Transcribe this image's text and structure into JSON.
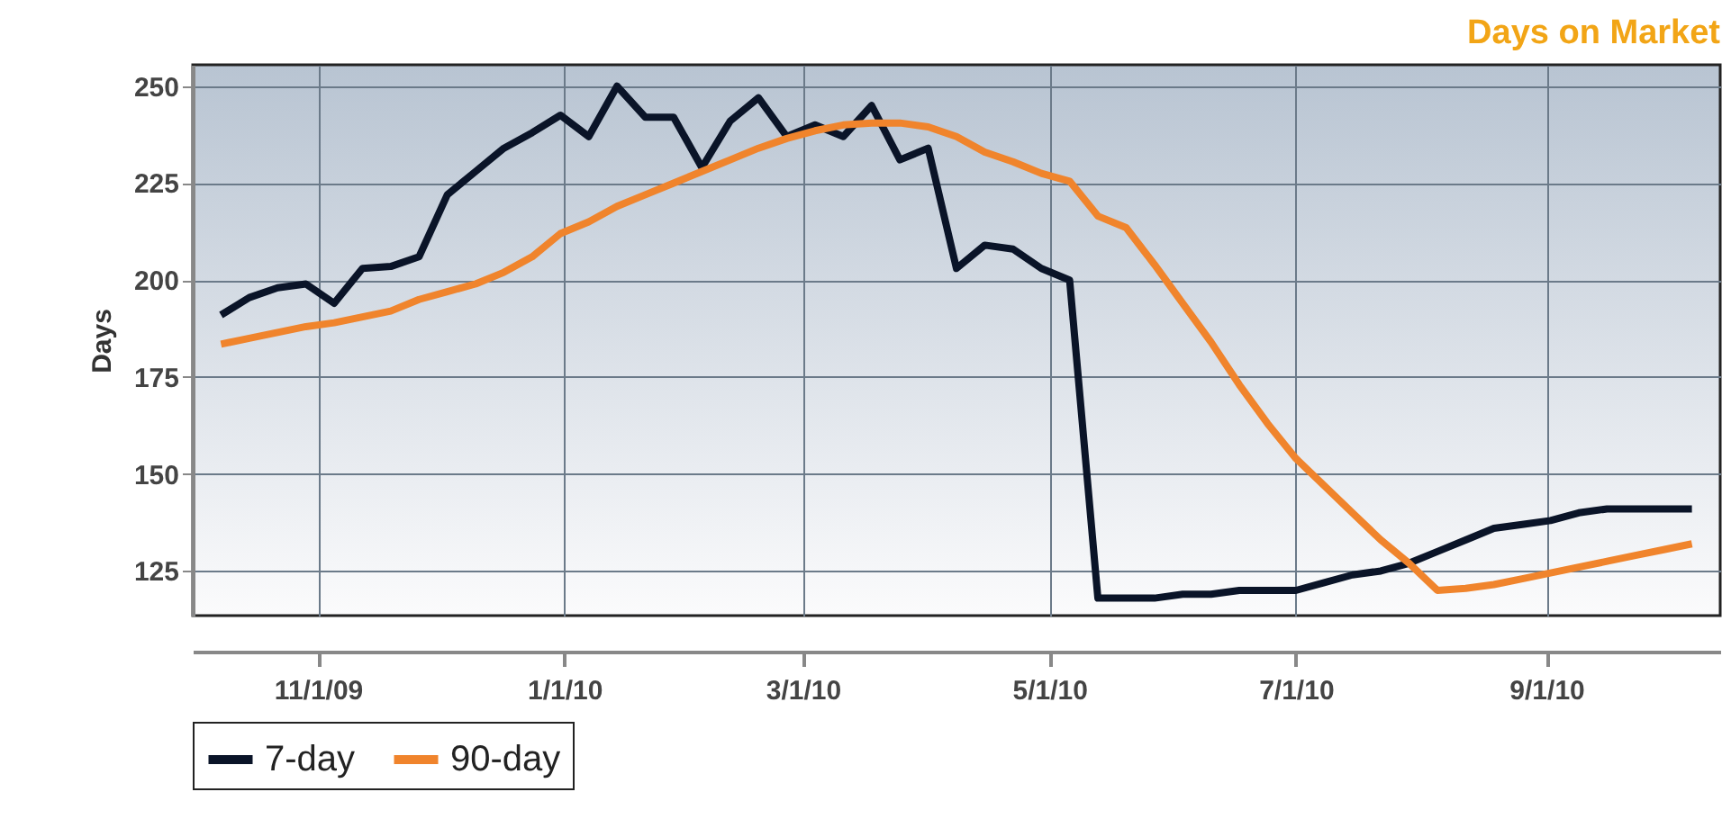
{
  "chart_data": {
    "type": "line",
    "title": "Days on Market",
    "ylabel": "Days",
    "x": [
      "2009-10-08",
      "2009-10-15",
      "2009-10-22",
      "2009-10-29",
      "2009-11-05",
      "2009-11-12",
      "2009-11-19",
      "2009-11-26",
      "2009-12-03",
      "2009-12-10",
      "2009-12-17",
      "2009-12-24",
      "2009-12-31",
      "2010-01-07",
      "2010-01-14",
      "2010-01-21",
      "2010-01-28",
      "2010-02-04",
      "2010-02-11",
      "2010-02-18",
      "2010-02-25",
      "2010-03-04",
      "2010-03-11",
      "2010-03-18",
      "2010-03-25",
      "2010-04-01",
      "2010-04-08",
      "2010-04-15",
      "2010-04-22",
      "2010-04-29",
      "2010-05-06",
      "2010-05-13",
      "2010-05-20",
      "2010-05-27",
      "2010-06-03",
      "2010-06-10",
      "2010-06-17",
      "2010-06-24",
      "2010-07-01",
      "2010-07-08",
      "2010-07-15",
      "2010-07-22",
      "2010-07-29",
      "2010-08-05",
      "2010-08-12",
      "2010-08-19",
      "2010-08-26",
      "2010-09-02",
      "2010-09-09",
      "2010-09-16",
      "2010-09-23",
      "2010-09-30",
      "2010-10-07"
    ],
    "series": [
      {
        "name": "7-day",
        "color": "#0a1428",
        "values": [
          191,
          195.5,
          198,
          199,
          194,
          203,
          203.5,
          206,
          222,
          228,
          234,
          238,
          242.5,
          237,
          250,
          242,
          242,
          229,
          241,
          247,
          237,
          240,
          237,
          245,
          231,
          234,
          203,
          209,
          208,
          203,
          200,
          118,
          118,
          118,
          119,
          119,
          120,
          120,
          120,
          122,
          124,
          125,
          127,
          130,
          133,
          136,
          137,
          138,
          140,
          141,
          141,
          141,
          141
        ]
      },
      {
        "name": "90-day",
        "color": "#f0842c",
        "values": [
          183.5,
          185,
          186.5,
          188,
          189,
          190.5,
          192,
          195,
          197,
          199,
          202,
          206,
          212,
          215,
          219,
          222,
          225,
          228,
          231,
          234,
          236.5,
          238.5,
          240,
          240.5,
          240.5,
          239.5,
          237,
          233,
          230.5,
          227.5,
          225.5,
          216.5,
          213.5,
          204,
          194,
          184,
          173,
          163,
          154,
          147,
          140,
          133,
          127,
          120,
          120.5,
          121.5,
          123,
          124.5,
          126,
          127.5,
          129,
          130.5,
          132
        ]
      }
    ],
    "xlim": [
      "2009-10-01",
      "2010-10-14"
    ],
    "xticks": [
      {
        "value": "2009-11-01",
        "label": "11/1/09"
      },
      {
        "value": "2010-01-01",
        "label": "1/1/10"
      },
      {
        "value": "2010-03-01",
        "label": "3/1/10"
      },
      {
        "value": "2010-05-01",
        "label": "5/1/10"
      },
      {
        "value": "2010-07-01",
        "label": "7/1/10"
      },
      {
        "value": "2010-09-01",
        "label": "9/1/10"
      }
    ],
    "ylim": [
      113.5,
      255.5
    ],
    "yticks": [
      125,
      150,
      175,
      200,
      225,
      250
    ],
    "grid": true,
    "legend": "bottom",
    "line_style": "solid",
    "marker": "none"
  }
}
